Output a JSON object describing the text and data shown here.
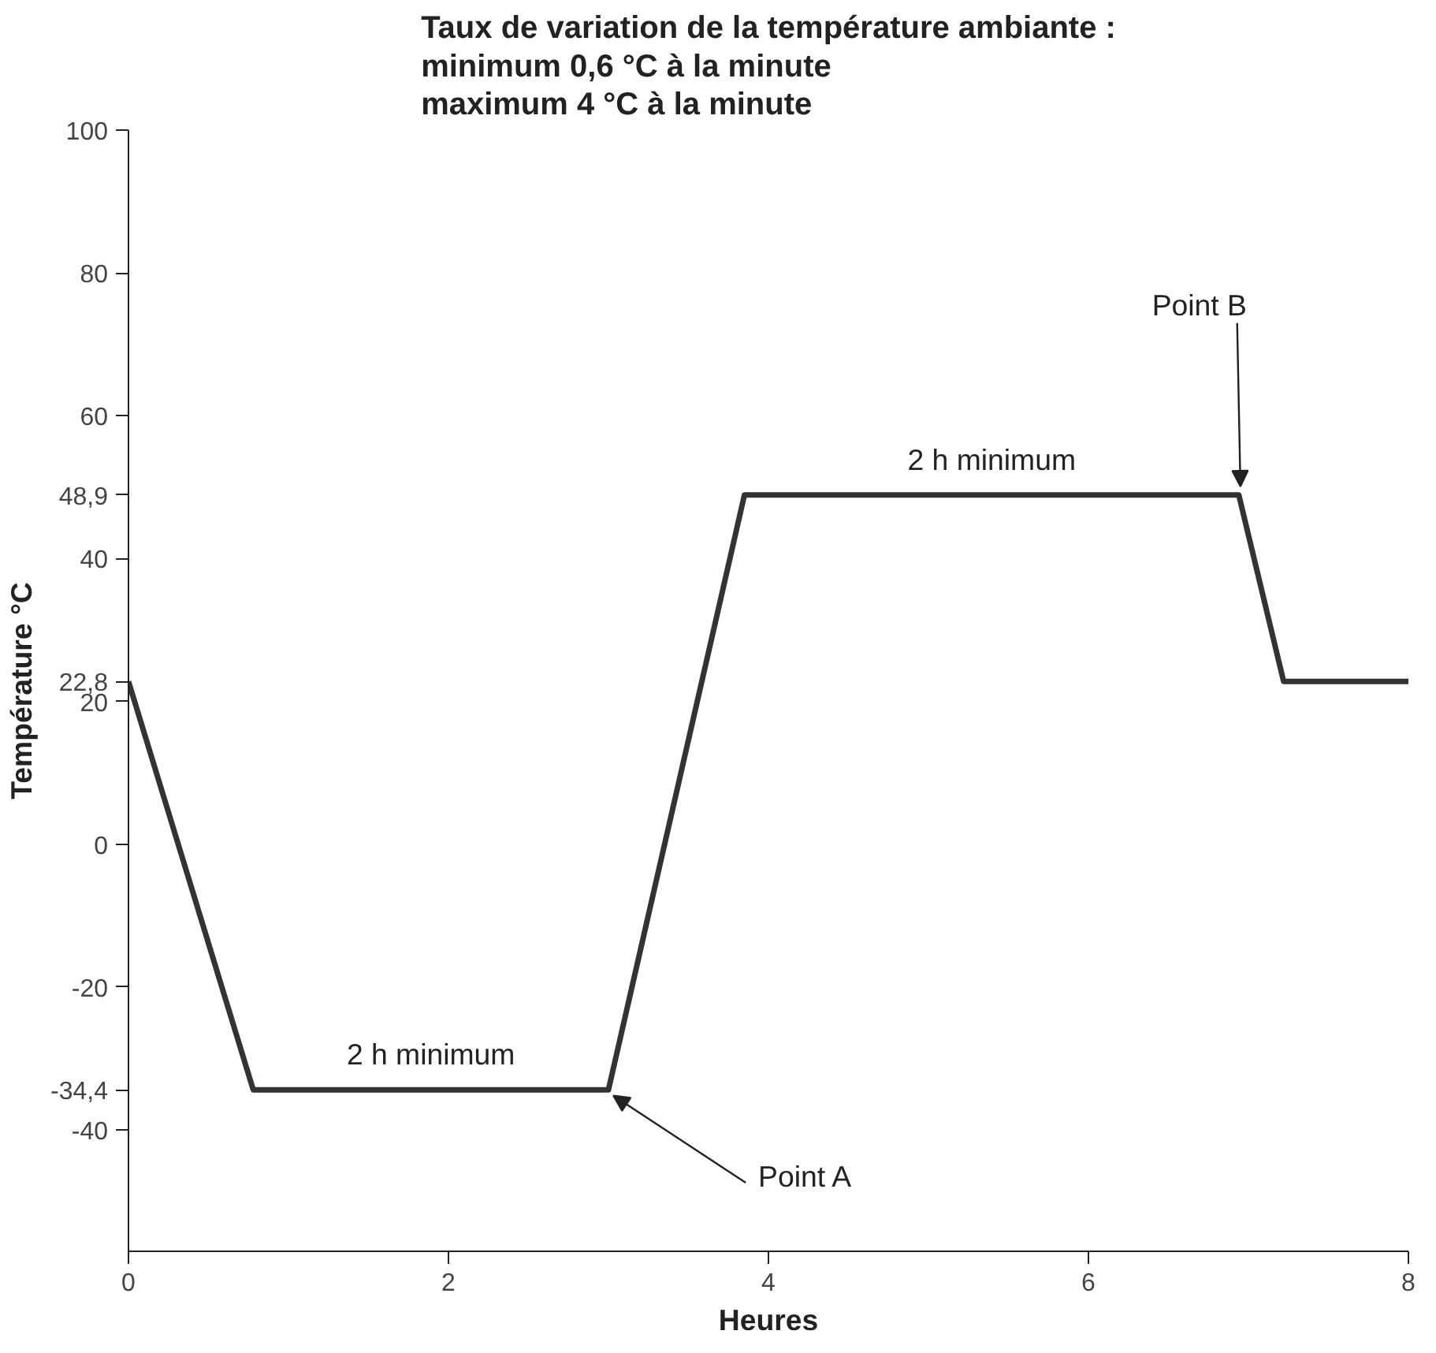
{
  "chart_data": {
    "type": "line",
    "title": "Taux de variation de la température ambiante :\nminimum 0,6 °C à la minute\nmaximum 4 °C à la minute",
    "xlabel": "Heures",
    "ylabel": "Température °C",
    "x": [
      0,
      0.78,
      3.0,
      3.85,
      6.94,
      7.22,
      8
    ],
    "series": [
      {
        "color": "#333333",
        "values": [
          22.8,
          -34.4,
          -34.4,
          48.9,
          48.9,
          22.8,
          22.8
        ]
      }
    ],
    "xlim": [
      0,
      8
    ],
    "ylim": [
      -57,
      100
    ],
    "xticks": [
      0,
      2,
      4,
      6,
      8
    ],
    "yticks": [
      100,
      80,
      60,
      {
        "value": 48.9,
        "label": "48,9"
      },
      40,
      {
        "value": 22.8,
        "label": "22,8"
      },
      20,
      0,
      -20,
      {
        "value": -34.4,
        "label": "-34,4"
      },
      -40
    ],
    "annotations": [
      "2 h minimum",
      "2 h minimum",
      {
        "text": "Point A",
        "x": 3.0,
        "y": -34.4
      },
      {
        "text": "Point B",
        "x": 6.94,
        "y": 48.9
      }
    ],
    "grid": false,
    "marker": "none",
    "line_style": "solid"
  }
}
